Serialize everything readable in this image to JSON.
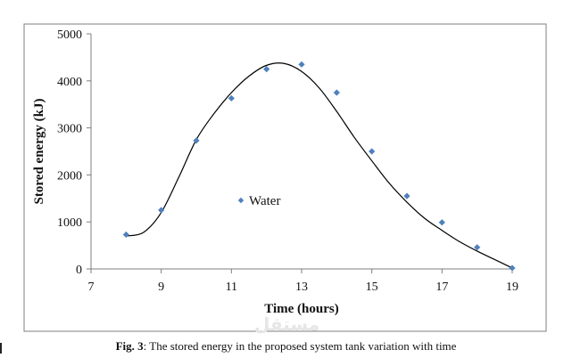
{
  "chart_data": {
    "type": "scatter",
    "title": "",
    "xlabel": "Time (hours)",
    "ylabel": "Stored energy (kJ)",
    "xlim": [
      7,
      19
    ],
    "ylim": [
      0,
      5000
    ],
    "x_ticks": [
      "7",
      "9",
      "11",
      "13",
      "15",
      "17",
      "19"
    ],
    "y_ticks": [
      "0",
      "1000",
      "2000",
      "3000",
      "4000",
      "5000"
    ],
    "grid": false,
    "legend_position": "center-left",
    "series": [
      {
        "name": "Water",
        "marker": "diamond",
        "color": "#4f81bd",
        "x": [
          8,
          9,
          10,
          11,
          12,
          13,
          14,
          15,
          16,
          17,
          18,
          19
        ],
        "y": [
          730,
          1250,
          2730,
          3630,
          4250,
          4350,
          3750,
          2500,
          1550,
          990,
          460,
          20
        ]
      }
    ],
    "trendline": {
      "color": "#000000",
      "x": [
        8,
        8.5,
        9,
        9.5,
        10,
        10.5,
        11,
        11.5,
        12,
        12.5,
        13,
        13.5,
        14,
        14.5,
        15,
        15.5,
        16,
        16.5,
        17,
        17.5,
        18,
        18.5,
        19
      ],
      "y": [
        700,
        780,
        1200,
        1950,
        2750,
        3300,
        3750,
        4100,
        4330,
        4370,
        4200,
        3850,
        3350,
        2800,
        2300,
        1820,
        1420,
        1080,
        820,
        580,
        380,
        200,
        20
      ]
    }
  },
  "caption": {
    "label": "Fig. 3",
    "text": ": The stored energy in the proposed system tank variation with time"
  },
  "watermark": "مستقل"
}
